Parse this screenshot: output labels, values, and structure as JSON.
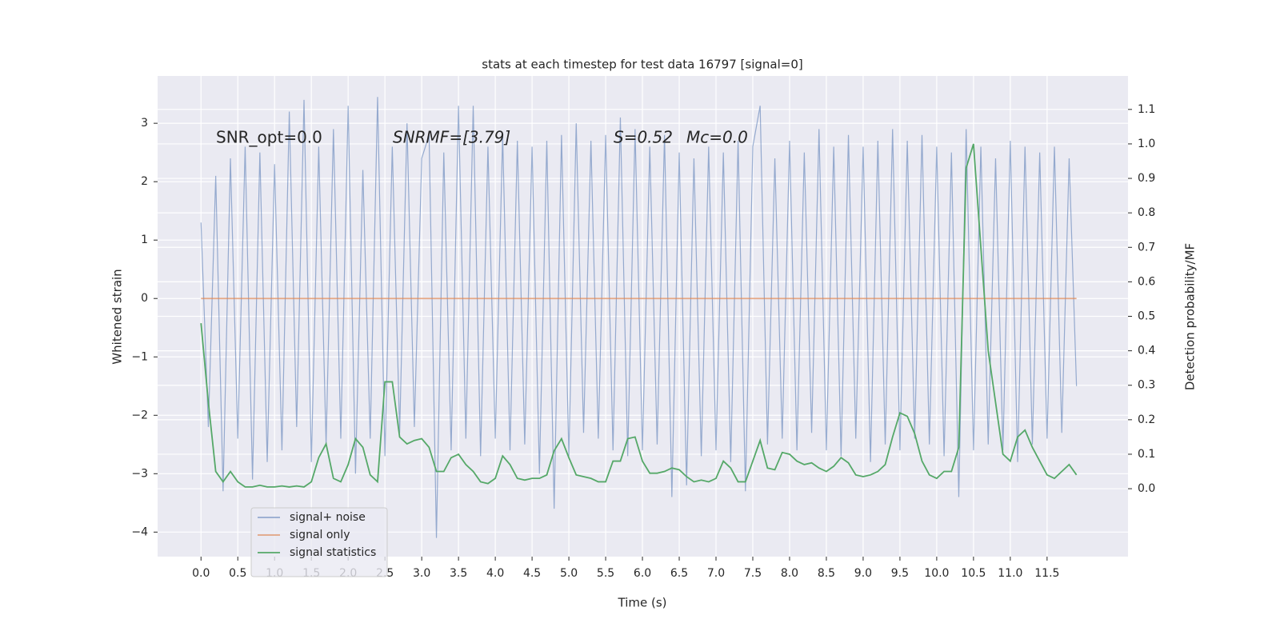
{
  "chart_data": {
    "type": "line",
    "title": "stats at each timestep for test data 16797 [signal=0]",
    "xlabel": "Time (s)",
    "ylabel": "Whitened strain",
    "y2label": "Detection probability/MF",
    "annotations": [
      "SNR_opt=0.0",
      "SNRMF=[3.79]",
      "S=0.52",
      "Mc=0.0"
    ],
    "legend": "lower left",
    "grid": true,
    "x": [
      0.0,
      0.1,
      0.2,
      0.3,
      0.4,
      0.5,
      0.6,
      0.7,
      0.8,
      0.9,
      1.0,
      1.1,
      1.2,
      1.3,
      1.4,
      1.5,
      1.6,
      1.7,
      1.8,
      1.9,
      2.0,
      2.1,
      2.2,
      2.3,
      2.4,
      2.5,
      2.6,
      2.7,
      2.8,
      2.9,
      3.0,
      3.1,
      3.2,
      3.3,
      3.4,
      3.5,
      3.6,
      3.7,
      3.8,
      3.9,
      4.0,
      4.1,
      4.2,
      4.3,
      4.4,
      4.5,
      4.6,
      4.7,
      4.8,
      4.9,
      5.0,
      5.1,
      5.2,
      5.3,
      5.4,
      5.5,
      5.6,
      5.7,
      5.8,
      5.9,
      6.0,
      6.1,
      6.2,
      6.3,
      6.4,
      6.5,
      6.6,
      6.7,
      6.8,
      6.9,
      7.0,
      7.1,
      7.2,
      7.3,
      7.4,
      7.5,
      7.6,
      7.7,
      7.8,
      7.9,
      8.0,
      8.1,
      8.2,
      8.3,
      8.4,
      8.5,
      8.6,
      8.7,
      8.8,
      8.9,
      9.0,
      9.1,
      9.2,
      9.3,
      9.4,
      9.5,
      9.6,
      9.7,
      9.8,
      9.9,
      10.0,
      10.1,
      10.2,
      10.3,
      10.4,
      10.5,
      10.6,
      10.7,
      10.8,
      10.9,
      11.0,
      11.1,
      11.2,
      11.3,
      11.4,
      11.5,
      11.6,
      11.7,
      11.8,
      11.9
    ],
    "series": [
      {
        "name": "signal+ noise",
        "color": "#4c72b0",
        "values": [
          1.3,
          -2.2,
          2.1,
          -3.3,
          2.4,
          -2.4,
          2.6,
          -3.1,
          2.5,
          -2.8,
          2.3,
          -2.6,
          3.2,
          -2.2,
          3.4,
          -2.8,
          2.6,
          -2.5,
          2.9,
          -2.4,
          3.3,
          -3.0,
          2.2,
          -2.4,
          3.45,
          -2.7,
          2.6,
          -2.3,
          3.0,
          -2.2,
          2.4,
          2.8,
          -4.1,
          2.5,
          -2.6,
          3.3,
          -2.4,
          3.3,
          -2.7,
          2.6,
          -2.4,
          2.8,
          -2.6,
          2.7,
          -2.5,
          2.6,
          -3.0,
          2.7,
          -3.6,
          2.8,
          -2.7,
          3.0,
          -2.3,
          2.7,
          -2.4,
          2.8,
          -2.6,
          3.1,
          -2.7,
          2.9,
          -2.6,
          2.6,
          -2.5,
          2.8,
          -3.4,
          2.5,
          -3.2,
          2.4,
          -2.7,
          2.6,
          -2.6,
          2.5,
          -2.8,
          2.7,
          -3.3,
          2.6,
          3.3,
          -2.5,
          2.4,
          -2.4,
          2.7,
          -2.6,
          2.5,
          -2.3,
          2.9,
          -2.6,
          2.6,
          -2.7,
          2.8,
          -2.4,
          2.6,
          -2.8,
          2.7,
          -2.5,
          2.9,
          -2.6,
          2.7,
          -2.4,
          2.8,
          -2.5,
          2.6,
          -2.7,
          2.5,
          -3.4,
          2.9,
          -2.6,
          2.6,
          -2.5,
          2.4,
          -2.6,
          2.7,
          -2.8,
          2.6,
          -2.5,
          2.5,
          -2.4,
          2.6,
          -2.3,
          2.4,
          -1.5
        ]
      },
      {
        "name": "signal only",
        "color": "#dd8452",
        "values": [
          0,
          0,
          0,
          0,
          0,
          0,
          0,
          0,
          0,
          0,
          0,
          0,
          0,
          0,
          0,
          0,
          0,
          0,
          0,
          0,
          0,
          0,
          0,
          0,
          0,
          0,
          0,
          0,
          0,
          0,
          0,
          0,
          0,
          0,
          0,
          0,
          0,
          0,
          0,
          0,
          0,
          0,
          0,
          0,
          0,
          0,
          0,
          0,
          0,
          0,
          0,
          0,
          0,
          0,
          0,
          0,
          0,
          0,
          0,
          0,
          0,
          0,
          0,
          0,
          0,
          0,
          0,
          0,
          0,
          0,
          0,
          0,
          0,
          0,
          0,
          0,
          0,
          0,
          0,
          0,
          0,
          0,
          0,
          0,
          0,
          0,
          0,
          0,
          0,
          0,
          0,
          0,
          0,
          0,
          0,
          0,
          0,
          0,
          0,
          0,
          0,
          0,
          0,
          0,
          0,
          0,
          0,
          0,
          0,
          0,
          0,
          0,
          0,
          0,
          0,
          0,
          0,
          0,
          0,
          0
        ]
      },
      {
        "name": "signal statistics",
        "color": "#55a868",
        "axis": "y2",
        "values": [
          0.48,
          0.25,
          0.05,
          0.02,
          0.05,
          0.02,
          0.005,
          0.005,
          0.01,
          0.005,
          0.005,
          0.008,
          0.005,
          0.008,
          0.005,
          0.02,
          0.09,
          0.13,
          0.03,
          0.02,
          0.07,
          0.145,
          0.12,
          0.04,
          0.02,
          0.31,
          0.31,
          0.15,
          0.13,
          0.14,
          0.145,
          0.12,
          0.05,
          0.05,
          0.09,
          0.1,
          0.07,
          0.05,
          0.02,
          0.015,
          0.03,
          0.095,
          0.07,
          0.03,
          0.025,
          0.03,
          0.03,
          0.04,
          0.11,
          0.145,
          0.09,
          0.04,
          0.035,
          0.03,
          0.02,
          0.02,
          0.08,
          0.08,
          0.145,
          0.15,
          0.08,
          0.045,
          0.045,
          0.05,
          0.06,
          0.055,
          0.035,
          0.02,
          0.025,
          0.02,
          0.03,
          0.08,
          0.06,
          0.02,
          0.02,
          0.08,
          0.14,
          0.06,
          0.055,
          0.105,
          0.1,
          0.08,
          0.07,
          0.075,
          0.06,
          0.05,
          0.065,
          0.09,
          0.075,
          0.04,
          0.035,
          0.04,
          0.05,
          0.07,
          0.15,
          0.22,
          0.21,
          0.16,
          0.08,
          0.04,
          0.03,
          0.05,
          0.05,
          0.12,
          0.93,
          1.0,
          0.7,
          0.4,
          0.25,
          0.1,
          0.08,
          0.15,
          0.17,
          0.12,
          0.08,
          0.04,
          0.03,
          0.05,
          0.07,
          0.04
        ]
      }
    ],
    "xlim": [
      -0.59,
      12.6
    ],
    "xticks": [
      {
        "value": 0,
        "label": "0.0"
      },
      0.5,
      {
        "value": 1,
        "label": "1.0"
      },
      1.5,
      {
        "value": 2,
        "label": "2.0"
      },
      2.5,
      {
        "value": 3,
        "label": "3.0"
      },
      3.5,
      {
        "value": 4,
        "label": "4.0"
      },
      4.5,
      {
        "value": 5,
        "label": "5.0"
      },
      5.5,
      {
        "value": 6,
        "label": "6.0"
      },
      6.5,
      {
        "value": 7,
        "label": "7.0"
      },
      7.5,
      {
        "value": 8,
        "label": "8.0"
      },
      8.5,
      {
        "value": 9,
        "label": "9.0"
      },
      9.5,
      {
        "value": 10,
        "label": "10.0"
      },
      10.5,
      {
        "value": 11,
        "label": "11.0"
      },
      11.5
    ],
    "ylim": [
      -4.42,
      3.81
    ],
    "yticks": [
      {
        "value": -4,
        "label": "−4"
      },
      {
        "value": -3,
        "label": "−3"
      },
      {
        "value": -2,
        "label": "−2"
      },
      {
        "value": -1,
        "label": "−1"
      },
      0,
      1,
      2,
      3
    ],
    "y2lim": [
      -0.197,
      1.197
    ],
    "y2ticks": [
      {
        "value": 0,
        "label": "0.0"
      },
      0.1,
      0.2,
      0.3,
      0.4,
      0.5,
      0.6,
      0.7,
      0.8,
      0.9,
      {
        "value": 1,
        "label": "1.0"
      },
      1.1
    ]
  }
}
